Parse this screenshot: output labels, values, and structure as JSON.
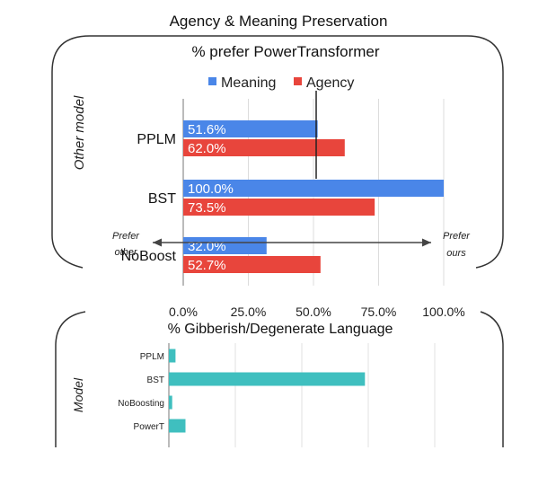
{
  "figure_title": "Agency & Meaning Preservation",
  "chart_data": [
    {
      "type": "bar",
      "orientation": "horizontal",
      "title": "% prefer PowerTransformer",
      "side_label": "Other model",
      "categories": [
        "PPLM",
        "BST",
        "NoBoost"
      ],
      "series": [
        {
          "name": "Meaning",
          "color": "#4a86e8",
          "values": [
            51.6,
            100.0,
            32.0
          ],
          "labels": [
            "51.6%",
            "100.0%",
            "32.0%"
          ]
        },
        {
          "name": "Agency",
          "color": "#e8453c",
          "values": [
            62.0,
            73.5,
            52.7
          ],
          "labels": [
            "62.0%",
            "73.5%",
            "52.7%"
          ]
        }
      ],
      "xlim": [
        0,
        100
      ],
      "xticks": [
        0,
        25,
        50,
        75,
        100
      ],
      "xtick_labels": [
        "0.0%",
        "25.0%",
        "50.0%",
        "75.0%",
        "100.0%"
      ],
      "legend_position": "top",
      "annotations": {
        "left": [
          "Prefer",
          "other"
        ],
        "right": [
          "Prefer",
          "ours"
        ]
      },
      "grid": true
    },
    {
      "type": "bar",
      "orientation": "horizontal",
      "title": "% Gibberish/Degenerate Language",
      "side_label": "Model",
      "categories": [
        "PPLM",
        "BST",
        "NoBoosting",
        "PowerT"
      ],
      "values": [
        2,
        59,
        1,
        5
      ],
      "xlim": [
        0,
        80
      ],
      "bar_color": "#3fbfbf",
      "grid": true
    }
  ]
}
